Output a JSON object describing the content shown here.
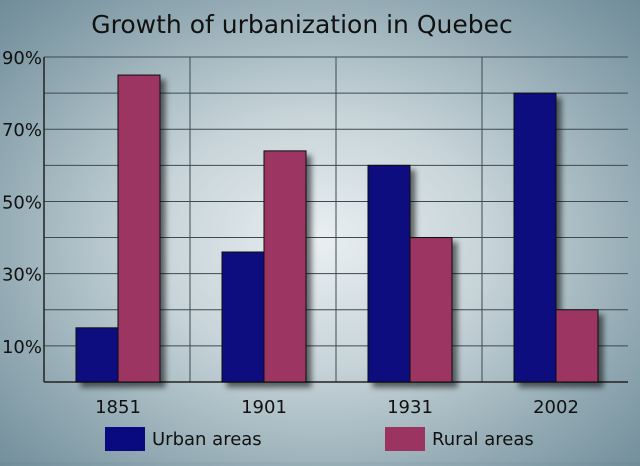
{
  "chart_data": {
    "type": "bar",
    "title": "Growth of urbanization in Quebec",
    "categories": [
      "1851",
      "1901",
      "1931",
      "2002"
    ],
    "series": [
      {
        "name": "Urban areas",
        "values": [
          15,
          36,
          60,
          80
        ],
        "color": "#0a0a80"
      },
      {
        "name": "Rural areas",
        "values": [
          85,
          64,
          40,
          20
        ],
        "color": "#9c3462"
      }
    ],
    "ylim": [
      0,
      90
    ],
    "y_ticks": [
      {
        "value": 10,
        "label": "10%"
      },
      {
        "value": 30,
        "label": "30%"
      },
      {
        "value": 50,
        "label": "50%"
      },
      {
        "value": 70,
        "label": "70%"
      },
      {
        "value": 90,
        "label": "90%"
      }
    ],
    "y_gridline_step": 10,
    "grid": true,
    "legend_position": "bottom"
  }
}
